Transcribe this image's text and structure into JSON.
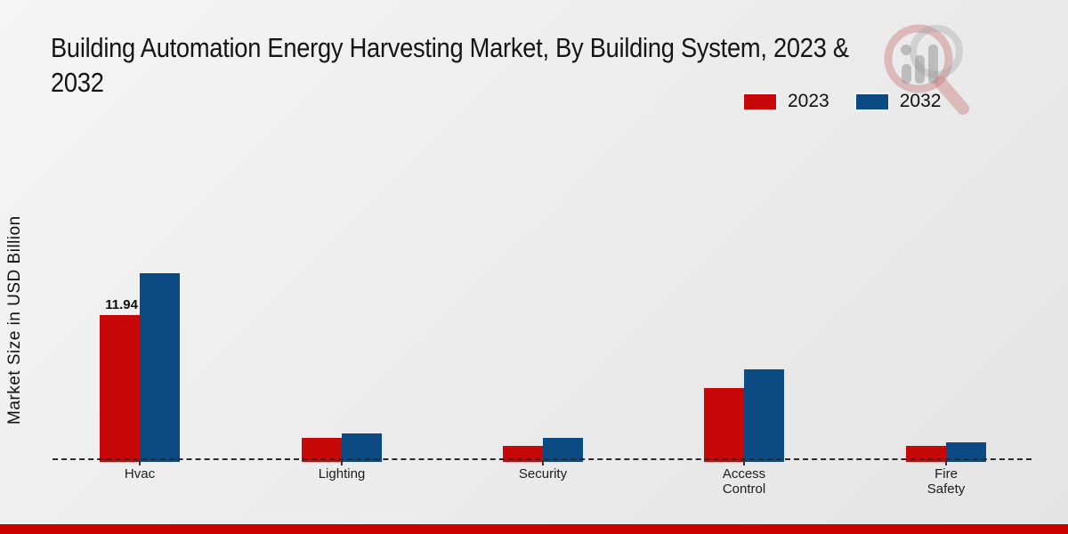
{
  "title": {
    "line1": "Building Automation Energy Harvesting Market, By Building System, 2023 &",
    "line2": "2032"
  },
  "chart_data": {
    "type": "bar",
    "title": "Building Automation Energy Harvesting Market, By Building System, 2023 & 2032",
    "ylabel": "Market Size in USD Billion",
    "xlabel": "",
    "categories": [
      "Hvac",
      "Lighting",
      "Security",
      "Access Control",
      "Fire Safety"
    ],
    "series": [
      {
        "name": "2023",
        "color": "#c60808",
        "values": [
          11.94,
          1.8,
          1.2,
          5.9,
          1.2
        ]
      },
      {
        "name": "2032",
        "color": "#0c4a84",
        "values": [
          15.4,
          2.2,
          1.8,
          7.5,
          1.5
        ]
      }
    ],
    "annotations": [
      {
        "category_index": 0,
        "series_index": 0,
        "text": "11.94"
      }
    ],
    "ylim": [
      0,
      16
    ],
    "grid": false,
    "y_axis_ticks_visible": false,
    "baseline_style": "dashed",
    "legend_position": "top-right"
  },
  "icons": {
    "watermark": "magnifier-bar-chart-logo"
  },
  "colors": {
    "bar_2023": "#c60808",
    "bar_2032": "#0c4a84",
    "footer_strip": "#cc0000",
    "background_top": "#f5f5f5",
    "background_bottom": "#e4e4e4",
    "baseline": "#2b2b2b"
  }
}
